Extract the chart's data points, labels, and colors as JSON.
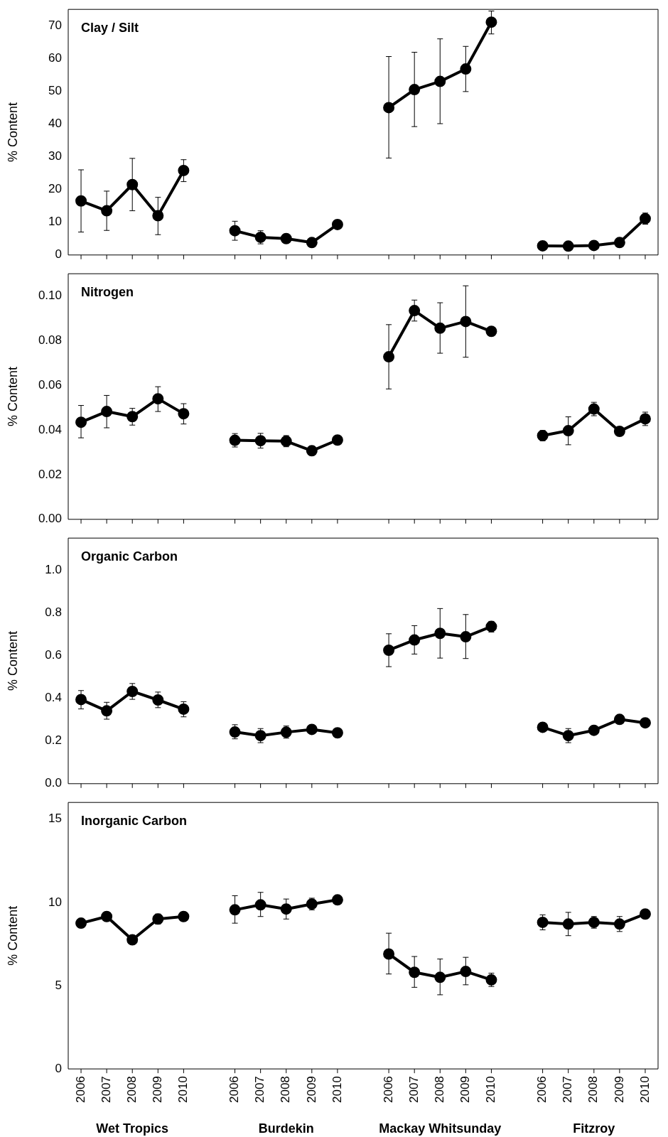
{
  "chart_data": [
    {
      "type": "line",
      "title": "Clay / Silt",
      "ylabel": "% Content",
      "categories": [
        "2006",
        "2007",
        "2008",
        "2009",
        "2010",
        null,
        "2006",
        "2007",
        "2008",
        "2009",
        "2010",
        null,
        "2006",
        "2007",
        "2008",
        "2009",
        "2010",
        null,
        "2006",
        "2007",
        "2008",
        "2009",
        "2010"
      ],
      "tick_labels": "y",
      "marker": "circle",
      "ylim": [
        0,
        75
      ],
      "yticks": [
        0,
        10,
        20,
        30,
        40,
        50,
        60,
        70
      ],
      "series": [
        {
          "color": "#000000",
          "values": [
            16.5,
            13.5,
            21.5,
            12,
            25.8,
            null,
            7.4,
            5.4,
            5,
            3.8,
            9.3,
            null,
            45,
            50.5,
            53,
            56.8,
            71.1,
            null,
            2.8,
            2.7,
            2.9,
            3.8,
            11.1
          ],
          "errors": [
            [
              7,
              26
            ],
            [
              7.5,
              19.5
            ],
            [
              13.5,
              29.5
            ],
            [
              6.2,
              17.6
            ],
            [
              22.4,
              29.1
            ],
            null,
            [
              4.5,
              10.3
            ],
            [
              3.4,
              7.4
            ],
            null,
            null,
            null,
            null,
            [
              29.6,
              60.6
            ],
            [
              39.2,
              61.9
            ],
            [
              40.1,
              66
            ],
            [
              49.9,
              63.7
            ],
            [
              67.5,
              74.5
            ],
            null,
            null,
            null,
            null,
            null,
            [
              9.4,
              12.8
            ]
          ]
        }
      ]
    },
    {
      "type": "line",
      "title": "Nitrogen",
      "ylabel": "% Content",
      "categories": [
        "2006",
        "2007",
        "2008",
        "2009",
        "2010",
        null,
        "2006",
        "2007",
        "2008",
        "2009",
        "2010",
        null,
        "2006",
        "2007",
        "2008",
        "2009",
        "2010",
        null,
        "2006",
        "2007",
        "2008",
        "2009",
        "2010"
      ],
      "tick_labels": "y",
      "marker": "circle",
      "ylim": [
        0,
        0.11
      ],
      "yticks": [
        {
          "value": 0,
          "label": "0.00"
        },
        {
          "value": 0.02,
          "label": "0.02"
        },
        {
          "value": 0.04,
          "label": "0.04"
        },
        {
          "value": 0.06,
          "label": "0.06"
        },
        {
          "value": 0.08,
          "label": "0.08"
        },
        {
          "value": 0.1,
          "label": "0.10"
        }
      ],
      "series": [
        {
          "color": "#000000",
          "values": [
            0.0435,
            0.0483,
            0.046,
            0.054,
            0.0473,
            null,
            0.0354,
            0.0352,
            0.035,
            0.0307,
            0.0355,
            null,
            0.0728,
            0.0935,
            0.0856,
            0.0886,
            0.0842,
            null,
            0.0375,
            0.0397,
            0.0494,
            0.0394,
            0.045
          ],
          "errors": [
            [
              0.0365,
              0.051
            ],
            [
              0.041,
              0.0555
            ],
            [
              0.0422,
              0.0497
            ],
            [
              0.0483,
              0.0594
            ],
            [
              0.0427,
              0.0518
            ],
            null,
            [
              0.0324,
              0.0384
            ],
            [
              0.0319,
              0.0385
            ],
            [
              0.0325,
              0.0375
            ],
            [
              0.0287,
              0.0327
            ],
            null,
            null,
            [
              0.0584,
              0.0872
            ],
            [
              0.0888,
              0.0982
            ],
            [
              0.0744,
              0.097
            ],
            [
              0.0726,
              0.1046
            ],
            null,
            null,
            [
              0.0352,
              0.0398
            ],
            [
              0.0334,
              0.0459
            ],
            [
              0.0464,
              0.0524
            ],
            null,
            [
              0.042,
              0.048
            ]
          ]
        }
      ]
    },
    {
      "type": "line",
      "title": "Organic Carbon",
      "ylabel": "% Content",
      "categories": [
        "2006",
        "2007",
        "2008",
        "2009",
        "2010",
        null,
        "2006",
        "2007",
        "2008",
        "2009",
        "2010",
        null,
        "2006",
        "2007",
        "2008",
        "2009",
        "2010",
        null,
        "2006",
        "2007",
        "2008",
        "2009",
        "2010"
      ],
      "tick_labels": "y",
      "marker": "circle",
      "ylim": [
        0,
        1.15
      ],
      "yticks": [
        {
          "value": 0,
          "label": "0.0"
        },
        {
          "value": 0.2,
          "label": "0.2"
        },
        {
          "value": 0.4,
          "label": "0.4"
        },
        {
          "value": 0.6,
          "label": "0.6"
        },
        {
          "value": 0.8,
          "label": "0.8"
        },
        {
          "value": 1,
          "label": "1.0"
        }
      ],
      "series": [
        {
          "color": "#000000",
          "values": [
            0.394,
            0.341,
            0.432,
            0.392,
            0.349,
            null,
            0.242,
            0.225,
            0.241,
            0.254,
            0.238,
            null,
            0.625,
            0.673,
            0.704,
            0.688,
            0.736,
            null,
            0.264,
            0.225,
            0.25,
            0.301,
            0.285
          ],
          "errors": [
            [
              0.35,
              0.436
            ],
            [
              0.302,
              0.381
            ],
            [
              0.395,
              0.469
            ],
            [
              0.356,
              0.429
            ],
            [
              0.313,
              0.384
            ],
            null,
            [
              0.21,
              0.276
            ],
            [
              0.192,
              0.258
            ],
            [
              0.213,
              0.27
            ],
            null,
            null,
            null,
            [
              0.548,
              0.702
            ],
            [
              0.607,
              0.74
            ],
            [
              0.588,
              0.82
            ],
            [
              0.586,
              0.792
            ],
            [
              0.71,
              0.76
            ],
            null,
            null,
            [
              0.192,
              0.258
            ],
            null,
            null,
            null
          ]
        }
      ]
    },
    {
      "type": "line",
      "title": "Inorganic Carbon",
      "ylabel": "% Content",
      "categories": [
        "2006",
        "2007",
        "2008",
        "2009",
        "2010",
        null,
        "2006",
        "2007",
        "2008",
        "2009",
        "2010",
        null,
        "2006",
        "2007",
        "2008",
        "2009",
        "2010",
        null,
        "2006",
        "2007",
        "2008",
        "2009",
        "2010"
      ],
      "marker": "circle",
      "ylim": [
        0,
        16
      ],
      "yticks": [
        0,
        5,
        10,
        15
      ],
      "annotations": [
        "Wet Tropics",
        "Burdekin",
        "Mackay Whitsunday",
        "Fitzroy"
      ],
      "series": [
        {
          "color": "#000000",
          "values": [
            8.75,
            9.15,
            7.75,
            9.0,
            9.15,
            null,
            9.55,
            9.85,
            9.6,
            9.9,
            10.15,
            null,
            6.9,
            5.8,
            5.5,
            5.85,
            5.35,
            null,
            8.8,
            8.7,
            8.8,
            8.7,
            9.3
          ],
          "errors": [
            null,
            null,
            null,
            [
              8.7,
              9.3
            ],
            null,
            null,
            [
              8.75,
              10.4
            ],
            [
              9.15,
              10.6
            ],
            [
              9.0,
              10.2
            ],
            [
              9.55,
              10.25
            ],
            null,
            null,
            [
              5.7,
              8.15
            ],
            [
              4.9,
              6.75
            ],
            [
              4.45,
              6.6
            ],
            [
              5.05,
              6.7
            ],
            [
              4.95,
              5.75
            ],
            null,
            [
              8.35,
              9.25
            ],
            [
              8.0,
              9.4
            ],
            [
              8.45,
              9.15
            ],
            [
              8.25,
              9.15
            ],
            null
          ]
        }
      ]
    }
  ]
}
